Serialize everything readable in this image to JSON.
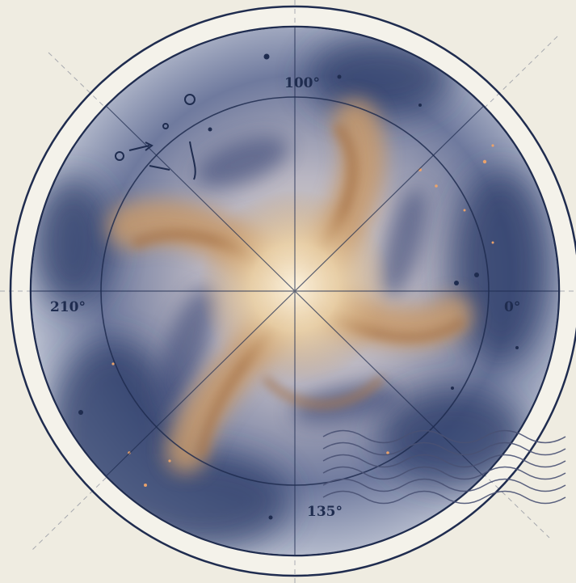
{
  "image": {
    "subject": "vintage spiral galaxy chart",
    "degree_labels": {
      "top": "100°",
      "left": "210°",
      "right": "0°",
      "bottom": "135°"
    },
    "colors": {
      "paper": "#efece1",
      "ink": "#1f2c4f",
      "dust_blue": "#46557f",
      "arm_tan": "#c89a6a",
      "core": "#f1dcb8"
    }
  }
}
